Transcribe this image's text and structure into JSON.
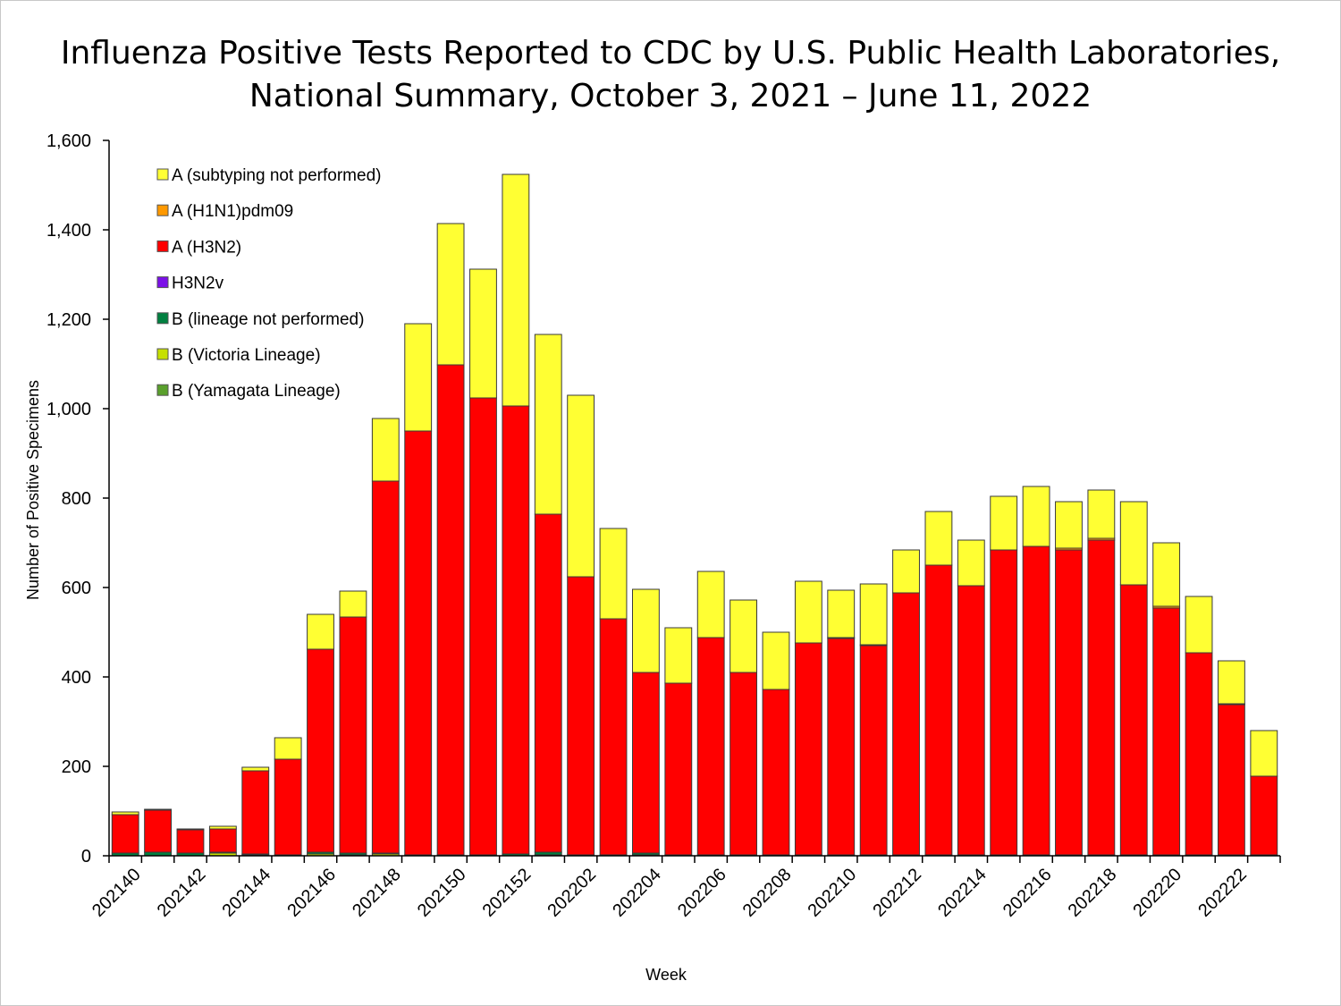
{
  "chart_data": {
    "type": "bar",
    "stacked": true,
    "title_line1": "Influenza Positive Tests Reported to CDC by U.S. Public Health Laboratories,",
    "title_line2": "National Summary, October 3, 2021 – June 11, 2022",
    "xlabel": "Week",
    "ylabel": "Number of Positive Specimens",
    "ylim": [
      0,
      1600
    ],
    "yticks": [
      0,
      200,
      400,
      600,
      800,
      1000,
      1200,
      1400,
      1600
    ],
    "ytick_labels": [
      "0",
      "200",
      "400",
      "600",
      "800",
      "1,000",
      "1,200",
      "1,400",
      "1,600"
    ],
    "grid": false,
    "legend_position": "top-left",
    "categories": [
      "202140",
      "202141",
      "202142",
      "202143",
      "202144",
      "202145",
      "202146",
      "202147",
      "202148",
      "202149",
      "202150",
      "202151",
      "202152",
      "202201",
      "202202",
      "202203",
      "202204",
      "202205",
      "202206",
      "202207",
      "202208",
      "202209",
      "202210",
      "202211",
      "202212",
      "202213",
      "202214",
      "202215",
      "202216",
      "202217",
      "202218",
      "202219",
      "202220",
      "202221",
      "202222",
      "202223"
    ],
    "xtick_labels": [
      "202140",
      "",
      "202142",
      "",
      "202144",
      "",
      "202146",
      "",
      "202148",
      "",
      "202150",
      "",
      "202152",
      "",
      "202202",
      "",
      "202204",
      "",
      "202206",
      "",
      "202208",
      "",
      "202210",
      "",
      "202212",
      "",
      "202214",
      "",
      "202216",
      "",
      "202218",
      "",
      "202220",
      "",
      "202222",
      ""
    ],
    "series": [
      {
        "name": "B (Yamagata Lineage)",
        "color": "#5aa02c",
        "values": [
          0,
          0,
          0,
          0,
          0,
          0,
          0,
          0,
          0,
          0,
          0,
          0,
          0,
          0,
          0,
          0,
          0,
          0,
          0,
          0,
          0,
          0,
          0,
          0,
          0,
          0,
          0,
          0,
          0,
          0,
          0,
          0,
          0,
          0,
          0,
          0
        ]
      },
      {
        "name": "B (Victoria Lineage)",
        "color": "#c6e000",
        "values": [
          0,
          0,
          0,
          6,
          2,
          0,
          4,
          2,
          4,
          0,
          0,
          0,
          0,
          2,
          0,
          0,
          2,
          0,
          0,
          0,
          0,
          0,
          0,
          0,
          0,
          0,
          0,
          0,
          0,
          0,
          0,
          0,
          0,
          0,
          0,
          0
        ]
      },
      {
        "name": "B (lineage not performed)",
        "color": "#008040",
        "values": [
          6,
          8,
          6,
          2,
          2,
          2,
          4,
          4,
          2,
          2,
          2,
          2,
          4,
          6,
          2,
          2,
          4,
          2,
          2,
          2,
          2,
          2,
          2,
          2,
          2,
          2,
          2,
          2,
          2,
          2,
          2,
          2,
          2,
          2,
          2,
          2
        ]
      },
      {
        "name": "H3N2v",
        "color": "#7b10e8",
        "values": [
          0,
          0,
          0,
          0,
          0,
          0,
          0,
          0,
          0,
          0,
          0,
          0,
          0,
          0,
          0,
          0,
          0,
          0,
          0,
          0,
          0,
          0,
          0,
          0,
          0,
          0,
          0,
          0,
          0,
          0,
          0,
          0,
          0,
          0,
          0,
          0
        ]
      },
      {
        "name": "A (H3N2)",
        "color": "#ff0000",
        "values": [
          86,
          94,
          52,
          52,
          186,
          214,
          454,
          528,
          832,
          948,
          1096,
          1022,
          1002,
          756,
          622,
          528,
          404,
          384,
          486,
          408,
          370,
          474,
          484,
          468,
          586,
          648,
          602,
          682,
          690,
          682,
          704,
          604,
          552,
          452,
          336,
          176
        ]
      },
      {
        "name": "A (H1N1)pdm09",
        "color": "#ff9900",
        "values": [
          0,
          0,
          0,
          0,
          0,
          0,
          0,
          0,
          0,
          0,
          0,
          0,
          0,
          0,
          0,
          0,
          0,
          0,
          0,
          0,
          0,
          0,
          2,
          2,
          0,
          0,
          0,
          0,
          0,
          4,
          4,
          0,
          4,
          0,
          2,
          0
        ]
      },
      {
        "name": "A (subtyping not performed)",
        "color": "#ffff33",
        "values": [
          6,
          2,
          2,
          6,
          8,
          48,
          78,
          58,
          140,
          240,
          316,
          288,
          518,
          402,
          406,
          202,
          186,
          124,
          148,
          162,
          128,
          138,
          106,
          136,
          96,
          120,
          102,
          120,
          134,
          104,
          108,
          186,
          142,
          126,
          96,
          102
        ]
      }
    ],
    "legend_order": [
      "A (subtyping not performed)",
      "A (H1N1)pdm09",
      "A (H3N2)",
      "H3N2v",
      "B (lineage not performed)",
      "B (Victoria Lineage)",
      "B (Yamagata Lineage)"
    ]
  }
}
